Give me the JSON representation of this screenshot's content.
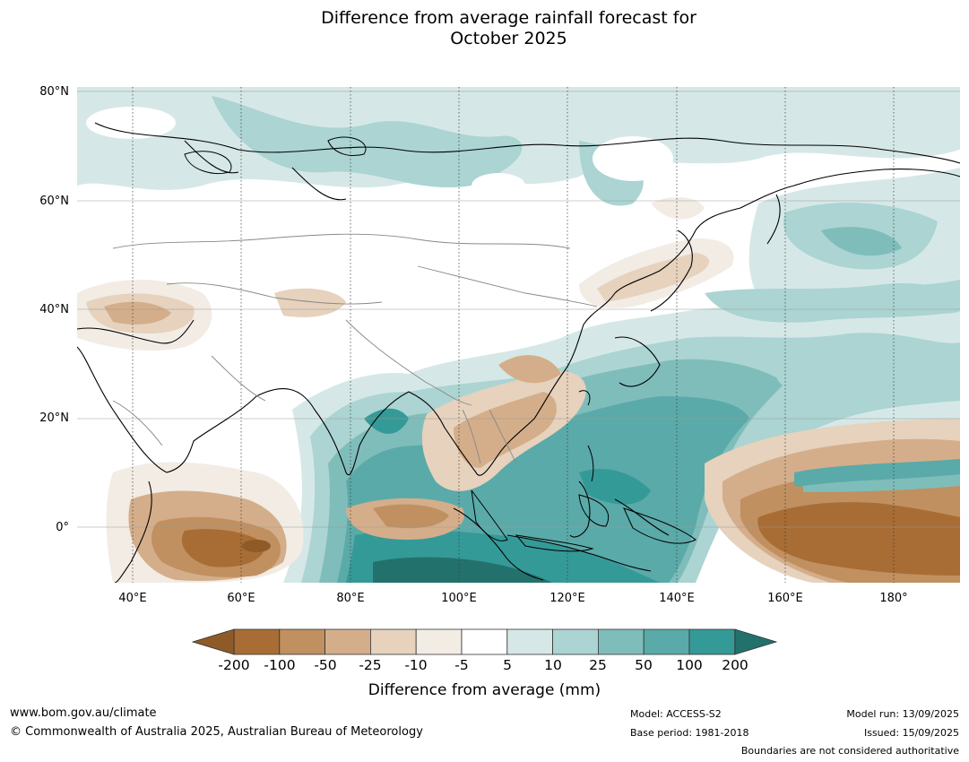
{
  "title": "Difference from average rainfall forecast for",
  "title_line2": "October 2025",
  "axes": {
    "lat_labels": [
      "80°N",
      "60°N",
      "40°N",
      "20°N",
      "0°"
    ],
    "lon_labels": [
      "40°E",
      "60°E",
      "80°E",
      "100°E",
      "120°E",
      "140°E",
      "160°E",
      "180°"
    ]
  },
  "colorbar": {
    "ticks": [
      "-200",
      "-100",
      "-50",
      "-25",
      "-10",
      "-5",
      "5",
      "10",
      "25",
      "50",
      "100",
      "200"
    ],
    "colors": [
      "#a86d35",
      "#c09060",
      "#d4ae8a",
      "#e6d2bd",
      "#f2ece5",
      "#ffffff",
      "#d5e8e7",
      "#abd4d2",
      "#7fbdbb",
      "#5aaaa9",
      "#349a97"
    ],
    "under_color": "#8e5a28",
    "over_color": "#23716d",
    "label": "Difference from average (mm)"
  },
  "footer": {
    "url": "www.bom.gov.au/climate",
    "copyright": "© Commonwealth of Australia 2025, Australian Bureau of Meteorology",
    "model": "Model: ACCESS-S2",
    "base_period": "Base period: 1981-2018",
    "model_run": "Model run: 13/09/2025",
    "issued": "Issued: 15/09/2025",
    "disclaimer": "Boundaries are not considered authoritative"
  }
}
